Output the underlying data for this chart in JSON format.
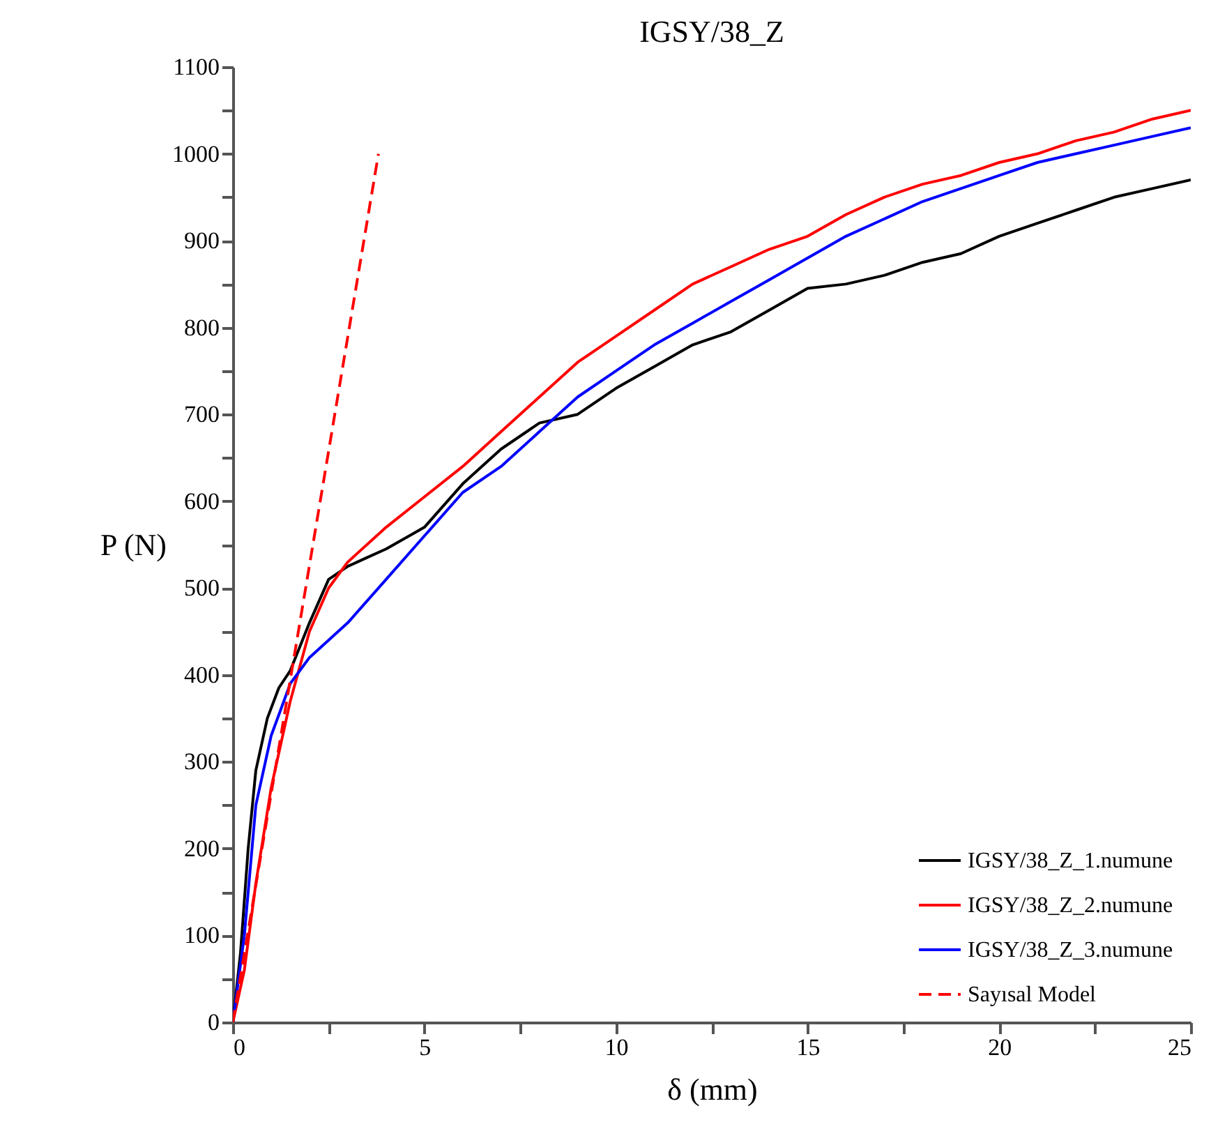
{
  "chart_data": {
    "type": "line",
    "title": "IGSY/38_Z",
    "xlabel": "δ (mm)",
    "ylabel": "P (N)",
    "xlim": [
      0,
      25
    ],
    "ylim": [
      0,
      1100
    ],
    "xticks": [
      0,
      {
        "value": 2.5,
        "label": null
      },
      5,
      {
        "value": 7.5,
        "label": null
      },
      10,
      {
        "value": 12.5,
        "label": null
      },
      15,
      {
        "value": 17.5,
        "label": null
      },
      20,
      {
        "value": 22.5,
        "label": null
      },
      25
    ],
    "yticks": [
      0,
      {
        "value": 50,
        "label": null
      },
      100,
      {
        "value": 150,
        "label": null
      },
      200,
      {
        "value": 250,
        "label": null
      },
      300,
      {
        "value": 350,
        "label": null
      },
      400,
      {
        "value": 450,
        "label": null
      },
      500,
      {
        "value": 550,
        "label": null
      },
      600,
      {
        "value": 650,
        "label": null
      },
      700,
      {
        "value": 750,
        "label": null
      },
      800,
      {
        "value": 850,
        "label": null
      },
      900,
      {
        "value": 950,
        "label": null
      },
      1000,
      {
        "value": 1050,
        "label": null
      },
      1100
    ],
    "grid": false,
    "legend": "bottom right",
    "marker": "none",
    "series": [
      {
        "name": "IGSY/38_Z_1.numune",
        "color": "#000000",
        "line_style": "solid",
        "x": [
          0,
          0.2,
          0.4,
          0.6,
          0.9,
          1.2,
          1.5,
          2,
          2.5,
          3,
          3.5,
          4,
          5,
          6,
          7,
          8,
          9,
          10,
          11,
          12,
          13,
          14,
          15,
          16,
          17,
          18,
          19,
          20,
          21,
          22,
          23,
          24,
          25
        ],
        "values": [
          0,
          80,
          200,
          290,
          350,
          385,
          405,
          460,
          510,
          525,
          535,
          545,
          570,
          620,
          660,
          690,
          700,
          730,
          755,
          780,
          795,
          820,
          845,
          850,
          860,
          875,
          885,
          905,
          920,
          935,
          950,
          960,
          970
        ]
      },
      {
        "name": "IGSY/38_Z_2.numune",
        "color": "#ff0000",
        "line_style": "solid",
        "x": [
          0,
          0.3,
          0.6,
          1,
          1.5,
          2,
          2.5,
          3,
          4,
          5,
          6,
          7,
          8,
          9,
          10,
          11,
          12,
          13,
          14,
          15,
          16,
          17,
          18,
          19,
          20,
          21,
          22,
          23,
          24,
          25
        ],
        "values": [
          0,
          60,
          160,
          270,
          370,
          450,
          500,
          530,
          570,
          605,
          640,
          680,
          720,
          760,
          790,
          820,
          850,
          870,
          890,
          905,
          930,
          950,
          965,
          975,
          990,
          1000,
          1015,
          1025,
          1040,
          1050
        ]
      },
      {
        "name": "IGSY/38_Z_3.numune",
        "color": "#0000ff",
        "line_style": "solid",
        "x": [
          0,
          0.3,
          0.6,
          1,
          1.5,
          2,
          3,
          4,
          5,
          6,
          7,
          8,
          9,
          10,
          11,
          12,
          13,
          14,
          15,
          16,
          17,
          18,
          19,
          20,
          21,
          22,
          23,
          24,
          25
        ],
        "values": [
          0,
          100,
          250,
          330,
          390,
          420,
          460,
          510,
          560,
          610,
          640,
          680,
          720,
          750,
          780,
          805,
          830,
          855,
          880,
          905,
          925,
          945,
          960,
          975,
          990,
          1000,
          1010,
          1020,
          1030
        ]
      },
      {
        "name": "Sayısal Model",
        "color": "#ff0000",
        "line_style": "dashed",
        "x": [
          0,
          3.8
        ],
        "values": [
          0,
          1000
        ]
      }
    ]
  }
}
